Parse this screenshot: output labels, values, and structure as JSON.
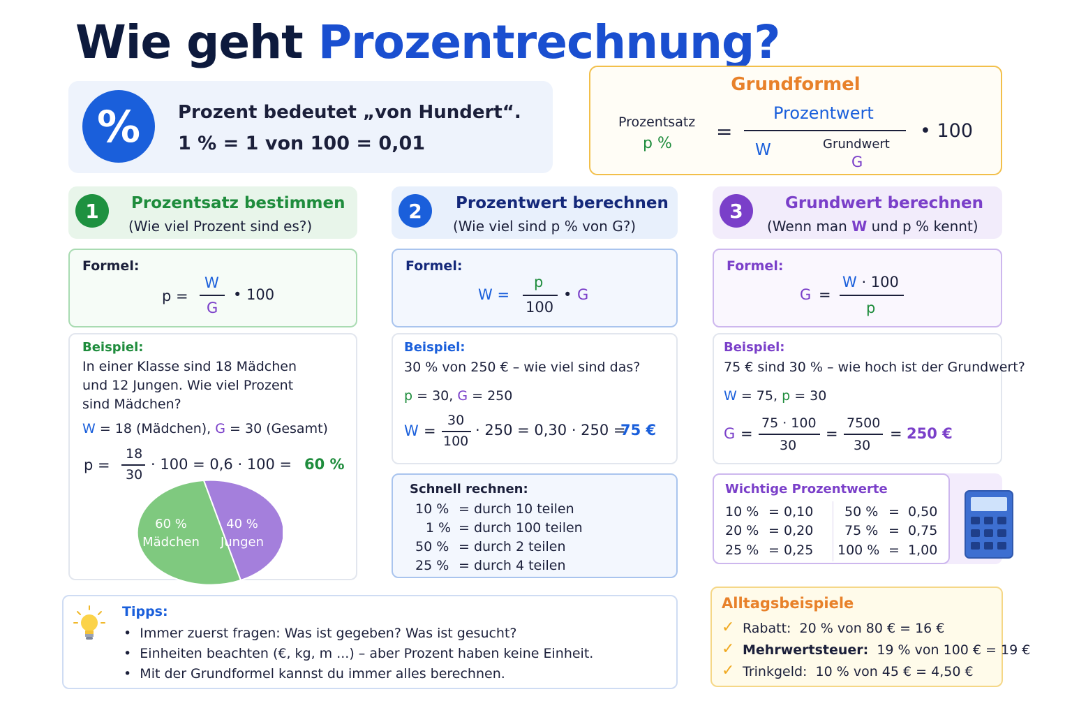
{
  "title": {
    "part1": "Wie geht ",
    "part2": "Prozentrechnung?"
  },
  "intro": {
    "symbol": "%",
    "line1": "Prozent bedeutet „von Hundert“.",
    "line2": "1 %  =  1 von 100  =  0,01"
  },
  "grundformel": {
    "title": "Grundformel",
    "left_label": "Prozentsatz",
    "left_symbol": "p %",
    "equals": "=",
    "numerator": "Prozentwert",
    "denominator_symbol": "W",
    "denominator_label": "Grundwert",
    "denominator_g": "G",
    "multiplier": "•  100"
  },
  "col1": {
    "number": "1",
    "title": "Prozentsatz bestimmen",
    "subtitle": "(Wie viel Prozent sind es?)",
    "formula_label": "Formel:",
    "f_left": "p  =",
    "f_num": "W",
    "f_den": "G",
    "f_mul": "•  100",
    "example_label": "Beispiel:",
    "ex_line1": "In einer Klasse sind 18 Mädchen",
    "ex_line2": "und 12 Jungen. Wie viel Prozent",
    "ex_line3": "sind Mädchen?",
    "given_w": "W",
    "given_w_val": "=  18 (Mädchen),",
    "given_g": "G",
    "given_g_val": "=  30 (Gesamt)",
    "calc_left": "p  =",
    "calc_num": "18",
    "calc_den": "30",
    "calc_rest": "·  100  =  0,6  ·  100  =",
    "calc_result": "60 %",
    "pie_a_value": "60 %",
    "pie_a_label": "Mädchen",
    "pie_b_value": "40 %",
    "pie_b_label": "Jungen"
  },
  "col2": {
    "number": "2",
    "title": "Prozentwert berechnen",
    "subtitle": "(Wie viel sind p % von G?)",
    "formula_label": "Formel:",
    "f_left": "W  =",
    "f_num": "p",
    "f_den": "100",
    "f_mul_dot": "•",
    "f_mul_g": "G",
    "example_label": "Beispiel:",
    "ex_line1": "30 % von 250 €  –  wie viel sind das?",
    "given_p": "p",
    "given_p_val": "=  30,",
    "given_g": "G",
    "given_g_val": "=  250",
    "calc_left": "W",
    "calc_eq": "=",
    "calc_num": "30",
    "calc_den": "100",
    "calc_rest": "· 250  =  0,30 · 250  =",
    "calc_result": "75 €",
    "quick_label": "Schnell rechnen:",
    "quick": [
      {
        "pct": "10  %",
        "rule": "=  durch  10  teilen"
      },
      {
        "pct": "1  %",
        "rule": "=  durch  100  teilen"
      },
      {
        "pct": "50  %",
        "rule": "=  durch  2  teilen"
      },
      {
        "pct": "25  %",
        "rule": "=  durch  4  teilen"
      }
    ]
  },
  "col3": {
    "number": "3",
    "title": "Grundwert berechnen",
    "subtitle_a": "(Wenn man ",
    "subtitle_w": "W",
    "subtitle_b": " und p % kennt)",
    "formula_label": "Formel:",
    "f_left": "G",
    "f_eq": "=",
    "f_num_w": "W",
    "f_num_rest": "· 100",
    "f_den": "p",
    "example_label": "Beispiel:",
    "ex_line1": "75 € sind 30 % – wie hoch ist der Grundwert?",
    "given_w": "W",
    "given_w_val": "=  75,",
    "given_p": "p",
    "given_p_val": "=  30",
    "calc_left": "G",
    "calc_eq": "=",
    "calc_num1": "75 · 100",
    "calc_den1": "30",
    "calc_eq2": "=",
    "calc_num2": "7500",
    "calc_den2": "30",
    "calc_eq3": "=",
    "calc_result": "250 €",
    "values_label": "Wichtige Prozentwerte",
    "values_left": [
      {
        "pct": "10 %",
        "eq": "=",
        "val": "0,10"
      },
      {
        "pct": "20 %",
        "eq": "=",
        "val": "0,20"
      },
      {
        "pct": "25 %",
        "eq": "=",
        "val": "0,25"
      }
    ],
    "values_right": [
      {
        "pct": "50 %",
        "eq": "=",
        "val": "0,50"
      },
      {
        "pct": "75 %",
        "eq": "=",
        "val": "0,75"
      },
      {
        "pct": "100 %",
        "eq": "=",
        "val": "1,00"
      }
    ]
  },
  "tips": {
    "label": "Tipps:",
    "items": [
      "Immer zuerst fragen: Was ist gegeben? Was ist gesucht?",
      "Einheiten beachten (€, kg, m ...)  –  aber Prozent haben keine Einheit.",
      "Mit der Grundformel kannst du immer alles berechnen."
    ]
  },
  "alltag": {
    "label": "Alltagsbeispiele",
    "items": [
      {
        "name": "Rabatt:",
        "value": "20 % von 80 €  =  16 €",
        "bold": false
      },
      {
        "name": "Mehrwertsteuer:",
        "value": "19 % von 100 €  =  19 €",
        "bold": true
      },
      {
        "name": "Trinkgeld:",
        "value": "10 % von 45 €  =  4,50 €",
        "bold": false
      }
    ]
  },
  "icons": [
    "percent-icon",
    "lightbulb-icon",
    "calculator-icon",
    "checkmark-icon"
  ],
  "colors": {
    "navy": "#0d1a3d",
    "blue": "#1a5fdb",
    "green": "#1e8c3c",
    "purple": "#7a3fc9",
    "orange": "#e8812a",
    "yellow_border": "#f2bf4a",
    "pie_green": "#7fc97f",
    "pie_purple": "#a47fdc"
  }
}
